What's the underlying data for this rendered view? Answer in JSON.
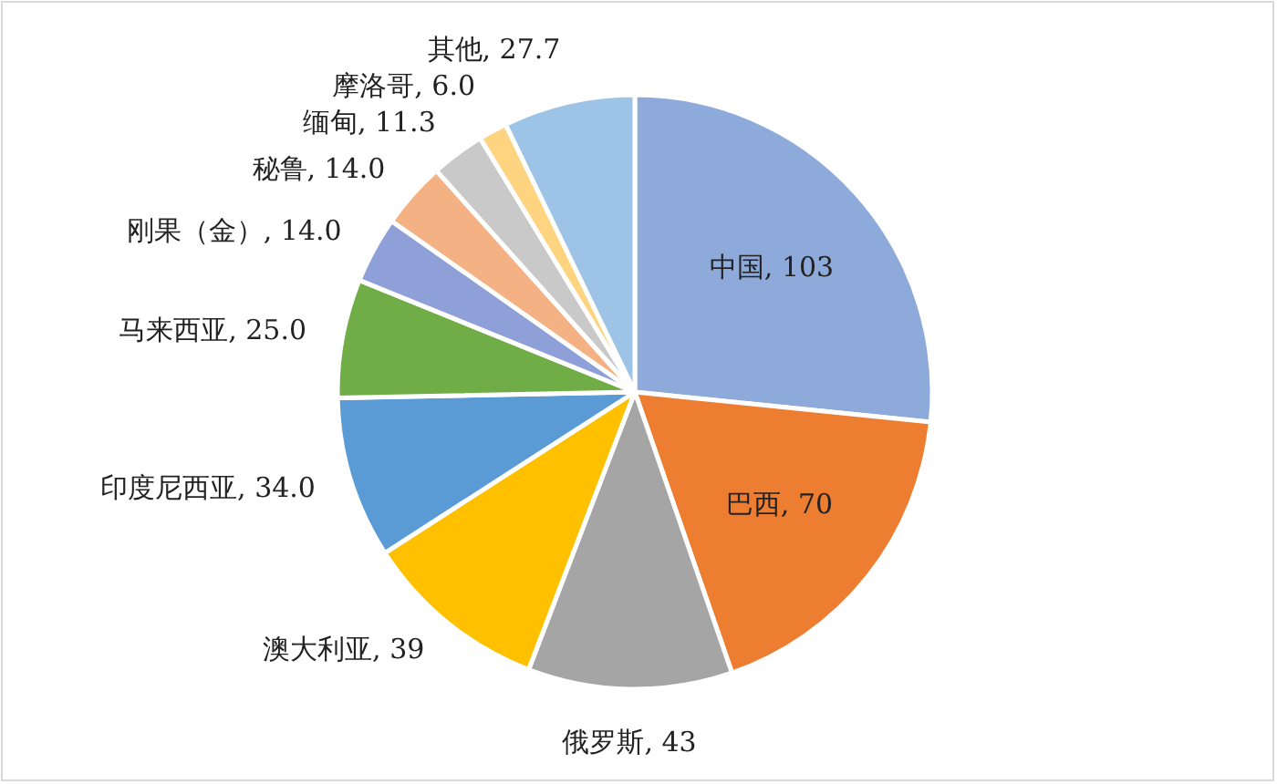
{
  "chart_data": {
    "type": "pie",
    "categories": [
      "中国",
      "巴西",
      "俄罗斯",
      "澳大利亚",
      "印度尼西亚",
      "马来西亚",
      "刚果（金）",
      "秘鲁",
      "缅甸",
      "摩洛哥",
      "其他"
    ],
    "values": [
      103,
      70,
      43,
      39,
      34.0,
      25.0,
      14.0,
      14.0,
      11.3,
      6.0,
      27.7
    ],
    "value_labels": [
      "103",
      "70",
      "43",
      "39",
      "34.0",
      "25.0",
      "14.0",
      "14.0",
      "11.3",
      "6.0",
      "27.7"
    ],
    "colors": [
      "#8eaadb",
      "#ed7d31",
      "#a5a5a5",
      "#ffc000",
      "#5b9bd5",
      "#70ad47",
      "#8fa0d8",
      "#f4b183",
      "#c9c9c9",
      "#ffd480",
      "#9dc3e6"
    ]
  }
}
